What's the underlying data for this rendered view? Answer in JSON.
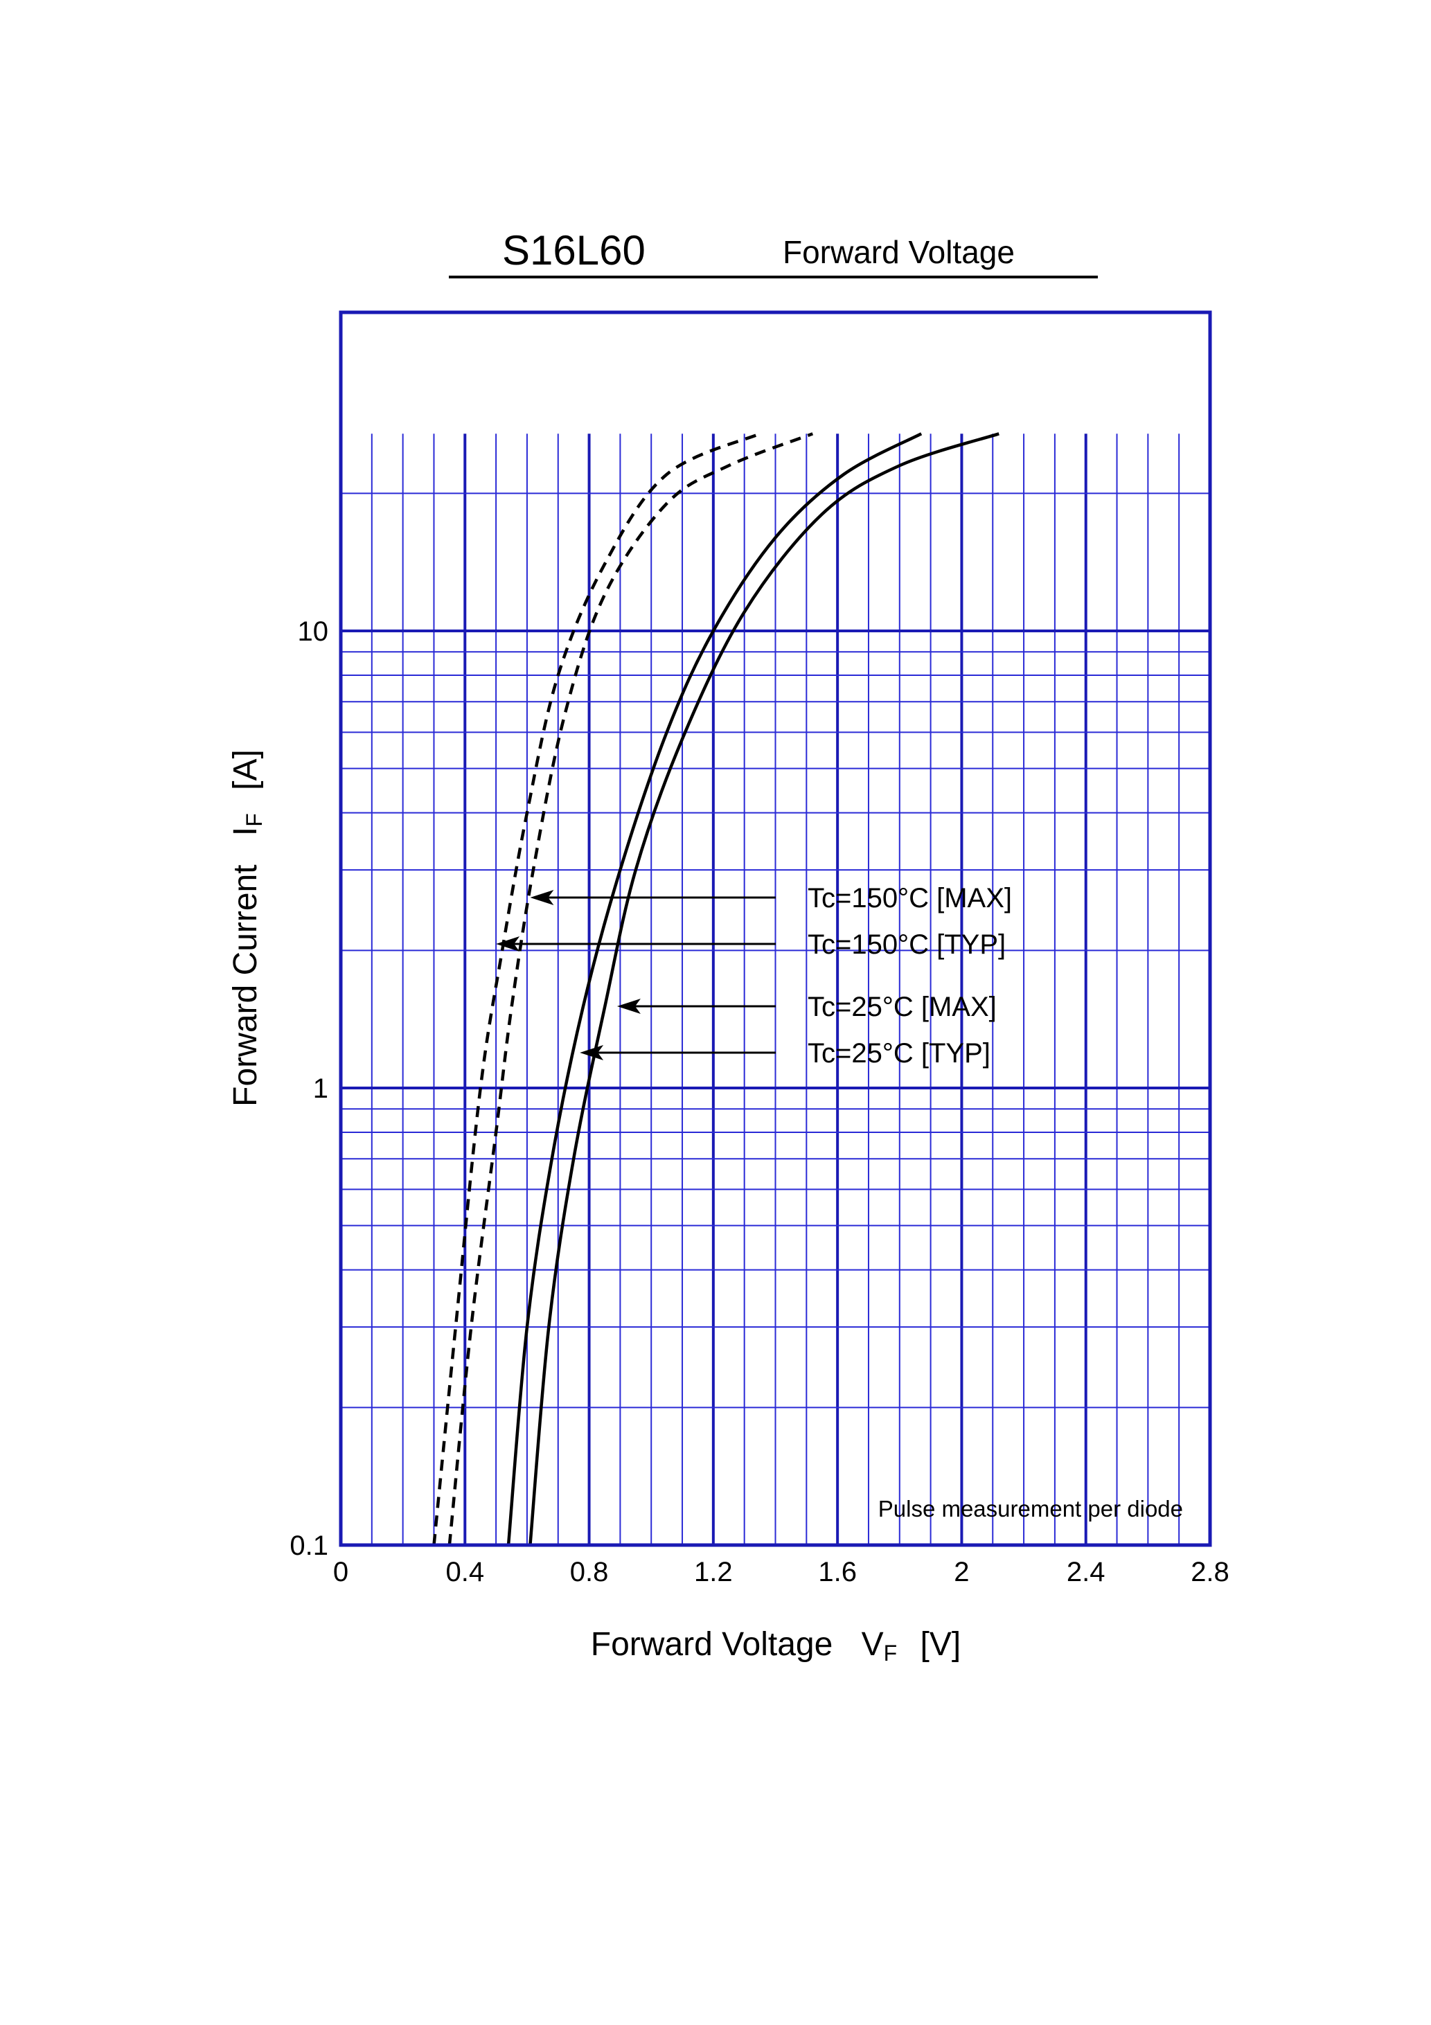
{
  "chart_data": {
    "type": "line",
    "title": "S16L60",
    "subtitle": "Forward Voltage",
    "xlabel": "Forward Voltage",
    "xlabel_symbol": "V",
    "xlabel_subscript": "F",
    "xlabel_unit": "[V]",
    "ylabel": "Forward Current",
    "ylabel_symbol": "I",
    "ylabel_subscript": "F",
    "ylabel_unit": "[A]",
    "xlim": [
      0,
      2.8
    ],
    "ylim": [
      0.1,
      27
    ],
    "yscale": "log",
    "grid": true,
    "x_ticks": [
      "0",
      "0.4",
      "0.8",
      "1.2",
      "1.6",
      "2",
      "2.4",
      "2.8"
    ],
    "y_ticks": [
      "0.1",
      "1",
      "10"
    ],
    "note": "Pulse measurement per diode",
    "series": [
      {
        "name": "Tc=150°C [MAX]",
        "style": "dashed",
        "x": [
          0.35,
          0.42,
          0.5,
          0.55,
          0.62,
          0.72,
          0.85,
          1.05,
          1.25,
          1.52
        ],
        "y": [
          0.1,
          0.3,
          0.8,
          1.5,
          3.0,
          6.5,
          12,
          19,
          23,
          27
        ]
      },
      {
        "name": "Tc=150°C [TYP]",
        "style": "dashed",
        "x": [
          0.3,
          0.37,
          0.45,
          0.52,
          0.6,
          0.7,
          0.85,
          1.05,
          1.35
        ],
        "y": [
          0.1,
          0.3,
          1.0,
          2.0,
          4.0,
          8.0,
          14,
          22,
          27
        ]
      },
      {
        "name": "Tc=25°C [MAX]",
        "style": "solid",
        "x": [
          0.61,
          0.67,
          0.75,
          0.85,
          0.95,
          1.1,
          1.3,
          1.55,
          1.8,
          2.12
        ],
        "y": [
          0.1,
          0.3,
          0.7,
          1.5,
          3.0,
          5.8,
          11,
          18,
          23,
          27
        ]
      },
      {
        "name": "Tc=25°C [TYP]",
        "style": "solid",
        "x": [
          0.54,
          0.6,
          0.68,
          0.78,
          0.9,
          1.05,
          1.2,
          1.4,
          1.62,
          1.87
        ],
        "y": [
          0.1,
          0.3,
          0.7,
          1.5,
          3.0,
          6.0,
          10,
          16,
          22,
          27
        ]
      }
    ],
    "legend": [
      {
        "label": "Tc=150°C [MAX]",
        "arrow_to": {
          "x": 0.61,
          "y": 2.65
        }
      },
      {
        "label": "Tc=150°C [TYP]",
        "arrow_to": {
          "x": 0.5,
          "y": 2.1
        }
      },
      {
        "label": "Tc=25°C [MAX]",
        "arrow_to": {
          "x": 0.89,
          "y": 1.5
        }
      },
      {
        "label": "Tc=25°C [TYP]",
        "arrow_to": {
          "x": 0.77,
          "y": 1.2
        }
      }
    ]
  }
}
